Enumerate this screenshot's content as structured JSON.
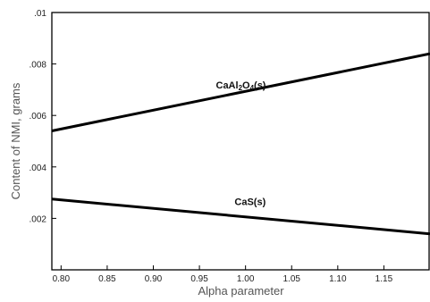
{
  "chart_data": {
    "type": "line",
    "xlabel": "Alpha parameter",
    "ylabel": "Content of NMI, grams",
    "xlim": [
      0.79,
      1.2
    ],
    "ylim": [
      0.0,
      0.01
    ],
    "x_ticks": [
      0.8,
      0.85,
      0.9,
      0.95,
      1.0,
      1.05,
      1.1,
      1.15
    ],
    "x_tick_labels": [
      "0.80",
      "0.85",
      "0.90",
      "0.95",
      "1.00",
      "1.05",
      "1.10",
      "1.15"
    ],
    "y_ticks": [
      0.002,
      0.004,
      0.006,
      0.008,
      0.01
    ],
    "y_tick_labels": [
      ".002",
      ".004",
      ".006",
      ".008",
      ".01"
    ],
    "grid": false,
    "series": [
      {
        "name": "CaAl2O4(s)",
        "label_parts": [
          {
            "text": "CaAl",
            "sub": false
          },
          {
            "text": "2",
            "sub": true
          },
          {
            "text": "O",
            "sub": false
          },
          {
            "text": "4",
            "sub": true
          },
          {
            "text": "(s)",
            "sub": false
          }
        ],
        "label_at": [
          0.995,
          0.00705
        ],
        "x": [
          0.79,
          1.2
        ],
        "y": [
          0.0054,
          0.0084
        ]
      },
      {
        "name": "CaS(s)",
        "label_parts": [
          {
            "text": "CaS(s)",
            "sub": false
          }
        ],
        "label_at": [
          1.005,
          0.00252
        ],
        "x": [
          0.79,
          1.2
        ],
        "y": [
          0.00275,
          0.0014
        ]
      }
    ]
  }
}
